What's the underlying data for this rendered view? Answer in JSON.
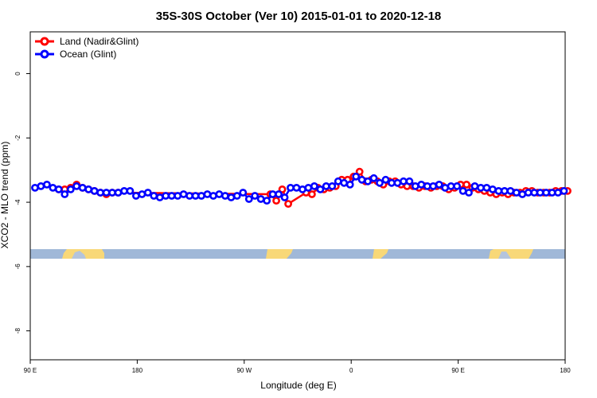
{
  "chart_data": {
    "type": "line",
    "title": "35S-30S October (Ver 10)   2015-01-01 to 2020-12-18",
    "xlabel": "Longitude (deg E)",
    "ylabel": "XCO2 - MLO trend (ppm)",
    "x_tick_labels": [
      "90 E",
      "180",
      "90 W",
      "0",
      "90 E",
      "180"
    ],
    "x_ticks": [
      90,
      180,
      270,
      360,
      450,
      540
    ],
    "xlim": [
      90,
      540
    ],
    "y_ticks": [
      0,
      -2,
      -4,
      -6,
      -8
    ],
    "ylim": [
      -8.9,
      1.3
    ],
    "grid": false,
    "legend_position": "top-left",
    "series": [
      {
        "name": "Land (Nadir&Glint)",
        "color": "#ff0000",
        "x": [
          114,
          119,
          124,
          129,
          134,
          139,
          144,
          149,
          154,
          159,
          164,
          292,
          297,
          302,
          307,
          322,
          327,
          332,
          337,
          342,
          347,
          352,
          357,
          362,
          367,
          372,
          377,
          382,
          387,
          392,
          397,
          402,
          407,
          412,
          417,
          422,
          427,
          432,
          437,
          442,
          447,
          452,
          457,
          462,
          467,
          472,
          477,
          482,
          487,
          492,
          497,
          502,
          507,
          512,
          517,
          522,
          527,
          532,
          537,
          542
        ],
        "y": [
          -3.6,
          -3.6,
          -3.55,
          -3.45,
          -3.55,
          -3.6,
          -3.65,
          -3.7,
          -3.75,
          -3.7,
          -3.7,
          -3.75,
          -3.95,
          -3.6,
          -4.05,
          -3.7,
          -3.75,
          -3.55,
          -3.6,
          -3.55,
          -3.5,
          -3.3,
          -3.3,
          -3.2,
          -3.05,
          -3.35,
          -3.3,
          -3.35,
          -3.45,
          -3.35,
          -3.35,
          -3.45,
          -3.5,
          -3.5,
          -3.55,
          -3.5,
          -3.55,
          -3.5,
          -3.5,
          -3.6,
          -3.55,
          -3.45,
          -3.45,
          -3.55,
          -3.6,
          -3.65,
          -3.7,
          -3.75,
          -3.7,
          -3.75,
          -3.7,
          -3.7,
          -3.65,
          -3.65,
          -3.7,
          -3.7,
          -3.7,
          -3.65,
          -3.65,
          -3.65
        ]
      },
      {
        "name": "Ocean (Glint)",
        "color": "#0000ff",
        "x": [
          94,
          99,
          104,
          109,
          114,
          119,
          124,
          129,
          134,
          139,
          144,
          149,
          154,
          159,
          164,
          169,
          174,
          179,
          184,
          189,
          194,
          199,
          204,
          209,
          214,
          219,
          224,
          229,
          234,
          239,
          244,
          249,
          254,
          259,
          264,
          269,
          274,
          279,
          284,
          289,
          294,
          299,
          304,
          309,
          314,
          319,
          324,
          329,
          334,
          339,
          344,
          349,
          354,
          359,
          364,
          369,
          374,
          379,
          384,
          389,
          394,
          399,
          404,
          409,
          414,
          419,
          424,
          429,
          434,
          439,
          444,
          449,
          454,
          459,
          464,
          469,
          474,
          479,
          484,
          489,
          494,
          499,
          504,
          509,
          514,
          519,
          524,
          529,
          534,
          539
        ],
        "y": [
          -3.55,
          -3.5,
          -3.45,
          -3.55,
          -3.6,
          -3.75,
          -3.6,
          -3.5,
          -3.55,
          -3.6,
          -3.65,
          -3.7,
          -3.7,
          -3.7,
          -3.7,
          -3.65,
          -3.65,
          -3.8,
          -3.75,
          -3.7,
          -3.8,
          -3.85,
          -3.8,
          -3.8,
          -3.8,
          -3.75,
          -3.8,
          -3.8,
          -3.8,
          -3.75,
          -3.8,
          -3.75,
          -3.8,
          -3.85,
          -3.8,
          -3.7,
          -3.9,
          -3.8,
          -3.9,
          -3.95,
          -3.75,
          -3.75,
          -3.85,
          -3.55,
          -3.55,
          -3.6,
          -3.55,
          -3.5,
          -3.6,
          -3.5,
          -3.5,
          -3.35,
          -3.4,
          -3.45,
          -3.2,
          -3.3,
          -3.35,
          -3.25,
          -3.4,
          -3.3,
          -3.4,
          -3.4,
          -3.35,
          -3.35,
          -3.5,
          -3.45,
          -3.5,
          -3.5,
          -3.45,
          -3.55,
          -3.5,
          -3.5,
          -3.65,
          -3.7,
          -3.5,
          -3.55,
          -3.55,
          -3.6,
          -3.65,
          -3.65,
          -3.65,
          -3.7,
          -3.75,
          -3.7,
          -3.7,
          -3.7,
          -3.7,
          -3.7,
          -3.7,
          -3.65
        ]
      }
    ],
    "land_mask_colors": {
      "ocean": "#a0b8d8",
      "land": "#f8d878"
    }
  }
}
